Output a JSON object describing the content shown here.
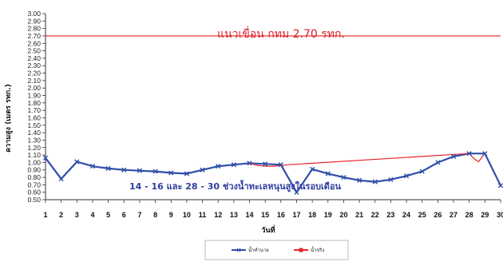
{
  "chart_data": {
    "type": "line",
    "title": "",
    "xlabel": "วันที่",
    "ylabel": "ความสูง (เมตร   รทก.)",
    "x": [
      1,
      2,
      3,
      4,
      5,
      6,
      7,
      8,
      9,
      10,
      11,
      12,
      13,
      14,
      15,
      16,
      17,
      18,
      19,
      20,
      21,
      22,
      23,
      24,
      25,
      26,
      27,
      28,
      29,
      30
    ],
    "ylim": [
      0.5,
      3.0
    ],
    "yticks": [
      0.5,
      0.6,
      0.7,
      0.8,
      0.9,
      1.0,
      1.1,
      1.2,
      1.3,
      1.4,
      1.5,
      1.6,
      1.7,
      1.8,
      1.9,
      2.0,
      2.1,
      2.2,
      2.3,
      2.4,
      2.5,
      2.6,
      2.7,
      2.8,
      2.9,
      3.0
    ],
    "ytick_labels": [
      "0.50",
      "0.60",
      "0.70",
      "0.80",
      "0.90",
      "1.00",
      "1.10",
      "1.20",
      "1.30",
      "1.40",
      "1.50",
      "1.60",
      "1.70",
      "1.80",
      "1.90",
      "2.00",
      "2.10",
      "2.20",
      "2.30",
      "2.40",
      "2.50",
      "2.60",
      "2.70",
      "2.80",
      "2.90",
      "3.00"
    ],
    "xtick_labels": [
      "1",
      "2",
      "3",
      "4",
      "5",
      "6",
      "7",
      "8",
      "9",
      "10",
      "11",
      "12",
      "13",
      "14",
      "15",
      "16",
      "17",
      "18",
      "19",
      "20",
      "21",
      "22",
      "23",
      "24",
      "25",
      "26",
      "27",
      "28",
      "29",
      "30"
    ],
    "grid": false,
    "legend_position": "bottom-center",
    "series": [
      {
        "name": "น้ำทำนาย",
        "color": "#2f4ea8",
        "marker": "x",
        "x": [
          1,
          2,
          3,
          4,
          5,
          6,
          7,
          8,
          9,
          10,
          11,
          12,
          13,
          14,
          15,
          16,
          17,
          18,
          19,
          20,
          21,
          22,
          23,
          24,
          25,
          26,
          27,
          28,
          29,
          30
        ],
        "values": [
          1.06,
          0.78,
          1.01,
          0.95,
          0.92,
          0.9,
          0.89,
          0.88,
          0.86,
          0.85,
          0.9,
          0.95,
          0.97,
          0.99,
          0.98,
          0.97,
          0.6,
          0.91,
          0.85,
          0.8,
          0.76,
          0.74,
          0.77,
          0.82,
          0.88,
          1.0,
          1.08,
          1.12,
          1.12,
          0.69
        ]
      },
      {
        "name": "น้ำจริง",
        "color": "#e8242a",
        "marker": "square",
        "x": [
          14,
          14.5,
          15,
          15.5,
          16,
          16.5,
          28,
          28.3,
          28.6,
          28.9
        ],
        "values": [
          0.99,
          0.96,
          0.95,
          0.95,
          0.96,
          0.97,
          1.12,
          1.05,
          1.01,
          1.1
        ]
      }
    ],
    "reference_lines": [
      {
        "y": 2.7,
        "label": "แนวเขื่อน กทม 2.70 รทก.",
        "color": "#e8242a"
      }
    ],
    "annotations": [
      {
        "text": "14 - 16 และ 28 - 30 ช่วงน้ำทะเลหนุนสูงในรอบเดือน"
      }
    ]
  }
}
